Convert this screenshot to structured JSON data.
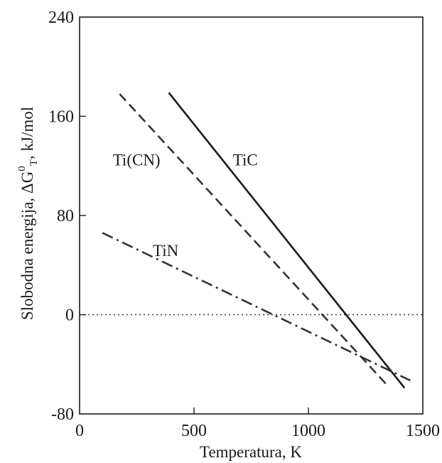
{
  "chart_data": {
    "type": "line",
    "title": "",
    "xlabel": "Temperatura, K",
    "ylabel_main": "Slobodna energija, ΔG",
    "ylabel_sup": "0",
    "ylabel_sub": "T",
    "ylabel_unit": ", kJ/mol",
    "xlim": [
      0,
      1500
    ],
    "ylim": [
      -80,
      240
    ],
    "xticks": [
      0,
      500,
      1000,
      1500
    ],
    "yticks": [
      -80,
      0,
      80,
      160,
      240
    ],
    "xtick_labels": [
      "0",
      "500",
      "1000",
      "1500"
    ],
    "ytick_labels": [
      "-80",
      "0",
      "80",
      "160",
      "240"
    ],
    "grid": false,
    "legend": "none",
    "reference_line": {
      "y": 0,
      "style": "dotted"
    },
    "series": [
      {
        "name": "TiC",
        "style": "solid",
        "color": "#1a1a1a",
        "x": [
          390,
          1420
        ],
        "y": [
          179,
          -59
        ]
      },
      {
        "name": "Ti(CN)",
        "style": "dashed",
        "color": "#333333",
        "x": [
          175,
          1350
        ],
        "y": [
          178,
          -58
        ]
      },
      {
        "name": "TiN",
        "style": "dashdot",
        "color": "#333333",
        "x": [
          100,
          1445
        ],
        "y": [
          66,
          -53
        ]
      }
    ],
    "labels": [
      {
        "text": "TiC",
        "x": 670,
        "y": 125
      },
      {
        "text": "Ti(CN)",
        "x": 145,
        "y": 125
      },
      {
        "text": "TiN",
        "x": 320,
        "y": 52
      }
    ]
  }
}
